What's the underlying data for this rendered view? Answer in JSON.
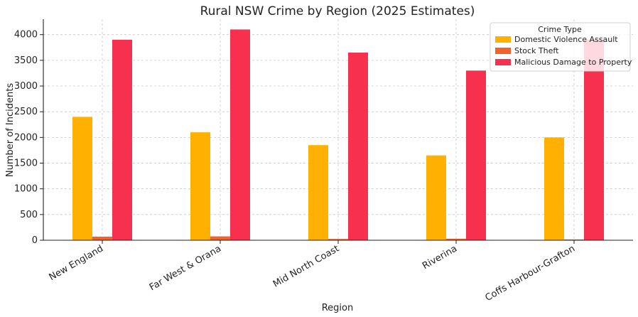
{
  "chart_data": {
    "type": "bar",
    "title": "Rural NSW Crime by Region (2025 Estimates)",
    "xlabel": "Region",
    "ylabel": "Number of Incidents",
    "categories": [
      "New England",
      "Far West & Orana",
      "Mid North Coast",
      "Riverina",
      "Coffs Harbour-Grafton"
    ],
    "series": [
      {
        "name": "Domestic Violence Assault",
        "color": "#FFB000",
        "values": [
          2400,
          2100,
          1850,
          1650,
          2000
        ]
      },
      {
        "name": "Stock Theft",
        "color": "#F0632A",
        "values": [
          70,
          75,
          25,
          30,
          15
        ]
      },
      {
        "name": "Malicious Damage to Property",
        "color": "#F7304F",
        "values": [
          3900,
          4100,
          3650,
          3300,
          3900
        ]
      }
    ],
    "ylim": [
      0,
      4300
    ],
    "yticks": [
      0,
      500,
      1000,
      1500,
      2000,
      2500,
      3000,
      3500,
      4000
    ],
    "grid": true,
    "legend": {
      "title": "Crime Type",
      "placement": "top-right"
    }
  }
}
